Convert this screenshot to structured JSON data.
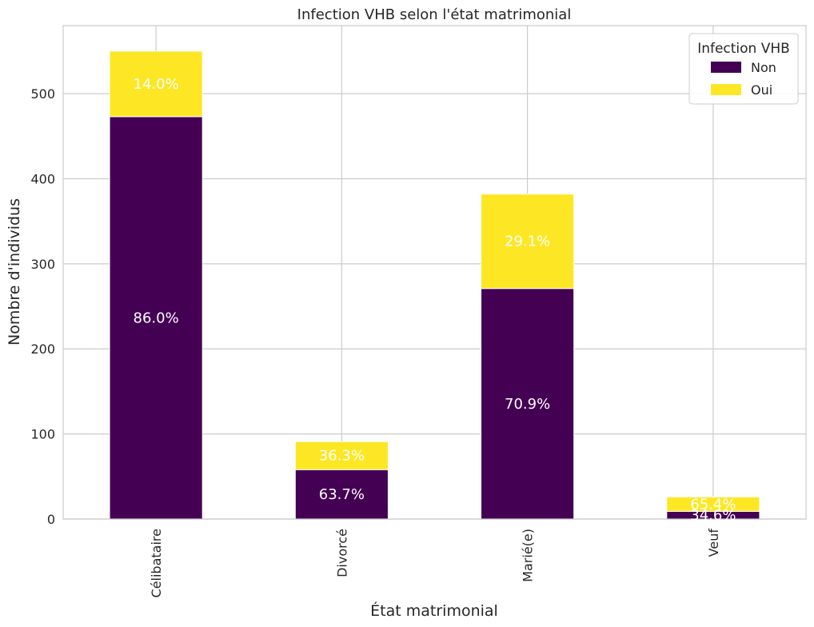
{
  "chart_data": {
    "type": "bar",
    "stacked": true,
    "title": "Infection VHB selon l'état matrimonial",
    "xlabel": "État matrimonial",
    "ylabel": "Nombre d'individus",
    "ylim": [
      0,
      580
    ],
    "yticks": [
      0,
      100,
      200,
      300,
      400,
      500
    ],
    "grid": true,
    "categories": [
      "Célibataire",
      "Divorcé",
      "Marié(e)",
      "Veuf"
    ],
    "series": [
      {
        "name": "Non",
        "color": "#440154",
        "values": [
          473,
          58,
          271,
          9
        ],
        "labels": [
          "86.0%",
          "63.7%",
          "70.9%",
          "34.6%"
        ]
      },
      {
        "name": "Oui",
        "color": "#fde725",
        "values": [
          77,
          33,
          111,
          17
        ],
        "labels": [
          "14.0%",
          "36.3%",
          "29.1%",
          "65.4%"
        ]
      }
    ],
    "legend": {
      "title": "Infection VHB",
      "position": "top-right"
    }
  }
}
